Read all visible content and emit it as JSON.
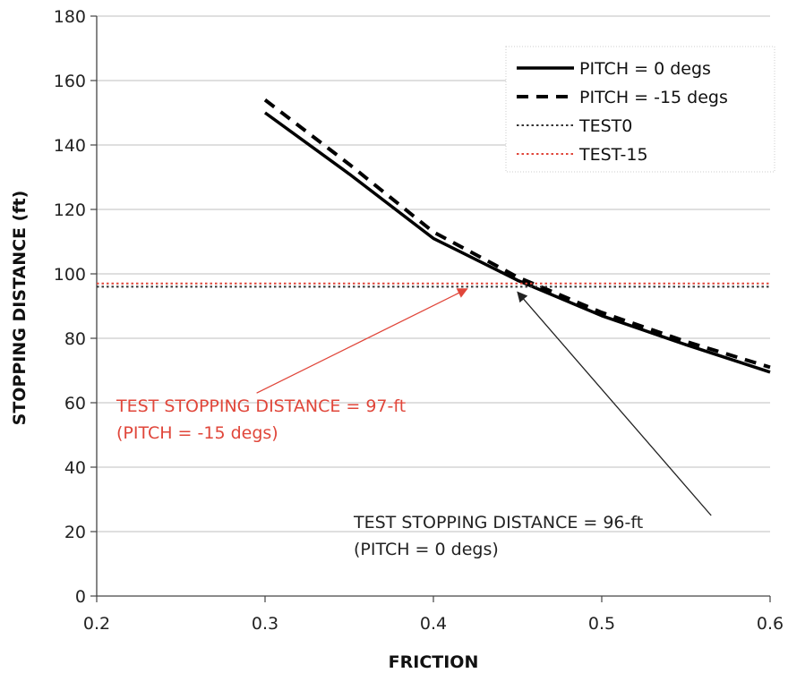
{
  "chart_data": {
    "type": "line",
    "xlabel": "FRICTION",
    "ylabel": "STOPPING DISTANCE (ft)",
    "xlim": [
      0.2,
      0.6
    ],
    "ylim": [
      0,
      180
    ],
    "x_ticks": [
      "0.2",
      "0.3",
      "0.4",
      "0.5",
      "0.6"
    ],
    "y_ticks": [
      "0",
      "20",
      "40",
      "60",
      "80",
      "100",
      "120",
      "140",
      "160",
      "180"
    ],
    "grid": "horizontal",
    "legend_position": "top-right",
    "series": [
      {
        "name": "PITCH = 0 degs",
        "style": "solid",
        "color": "#000000",
        "x": [
          0.3,
          0.35,
          0.4,
          0.45,
          0.5,
          0.55,
          0.6
        ],
        "y": [
          150,
          131,
          111,
          98,
          87,
          78,
          69.5
        ]
      },
      {
        "name": "PITCH = -15 degs",
        "style": "dashed",
        "color": "#000000",
        "x": [
          0.3,
          0.35,
          0.4,
          0.45,
          0.5,
          0.55,
          0.6
        ],
        "y": [
          154,
          134,
          113,
          99,
          88,
          79,
          71
        ]
      },
      {
        "name": "TEST0",
        "style": "dotted",
        "color": "#333333",
        "x": [
          0.2,
          0.6
        ],
        "y": [
          96,
          96
        ]
      },
      {
        "name": "TEST-15",
        "style": "dotted",
        "color": "#e0463a",
        "x": [
          0.2,
          0.6
        ],
        "y": [
          97,
          97
        ]
      }
    ],
    "annotations": [
      {
        "lines": [
          "TEST STOPPING DISTANCE = 97-ft",
          "(PITCH = -15 degs)"
        ],
        "color": "#e0463a",
        "arrow_to": [
          0.42,
          97
        ],
        "arrow_from": [
          0.295,
          63
        ]
      },
      {
        "lines": [
          "TEST STOPPING DISTANCE = 96-ft",
          "(PITCH = 0 degs)"
        ],
        "color": "#222222",
        "arrow_to": [
          0.45,
          96
        ],
        "arrow_from": [
          0.565,
          25
        ]
      }
    ]
  }
}
